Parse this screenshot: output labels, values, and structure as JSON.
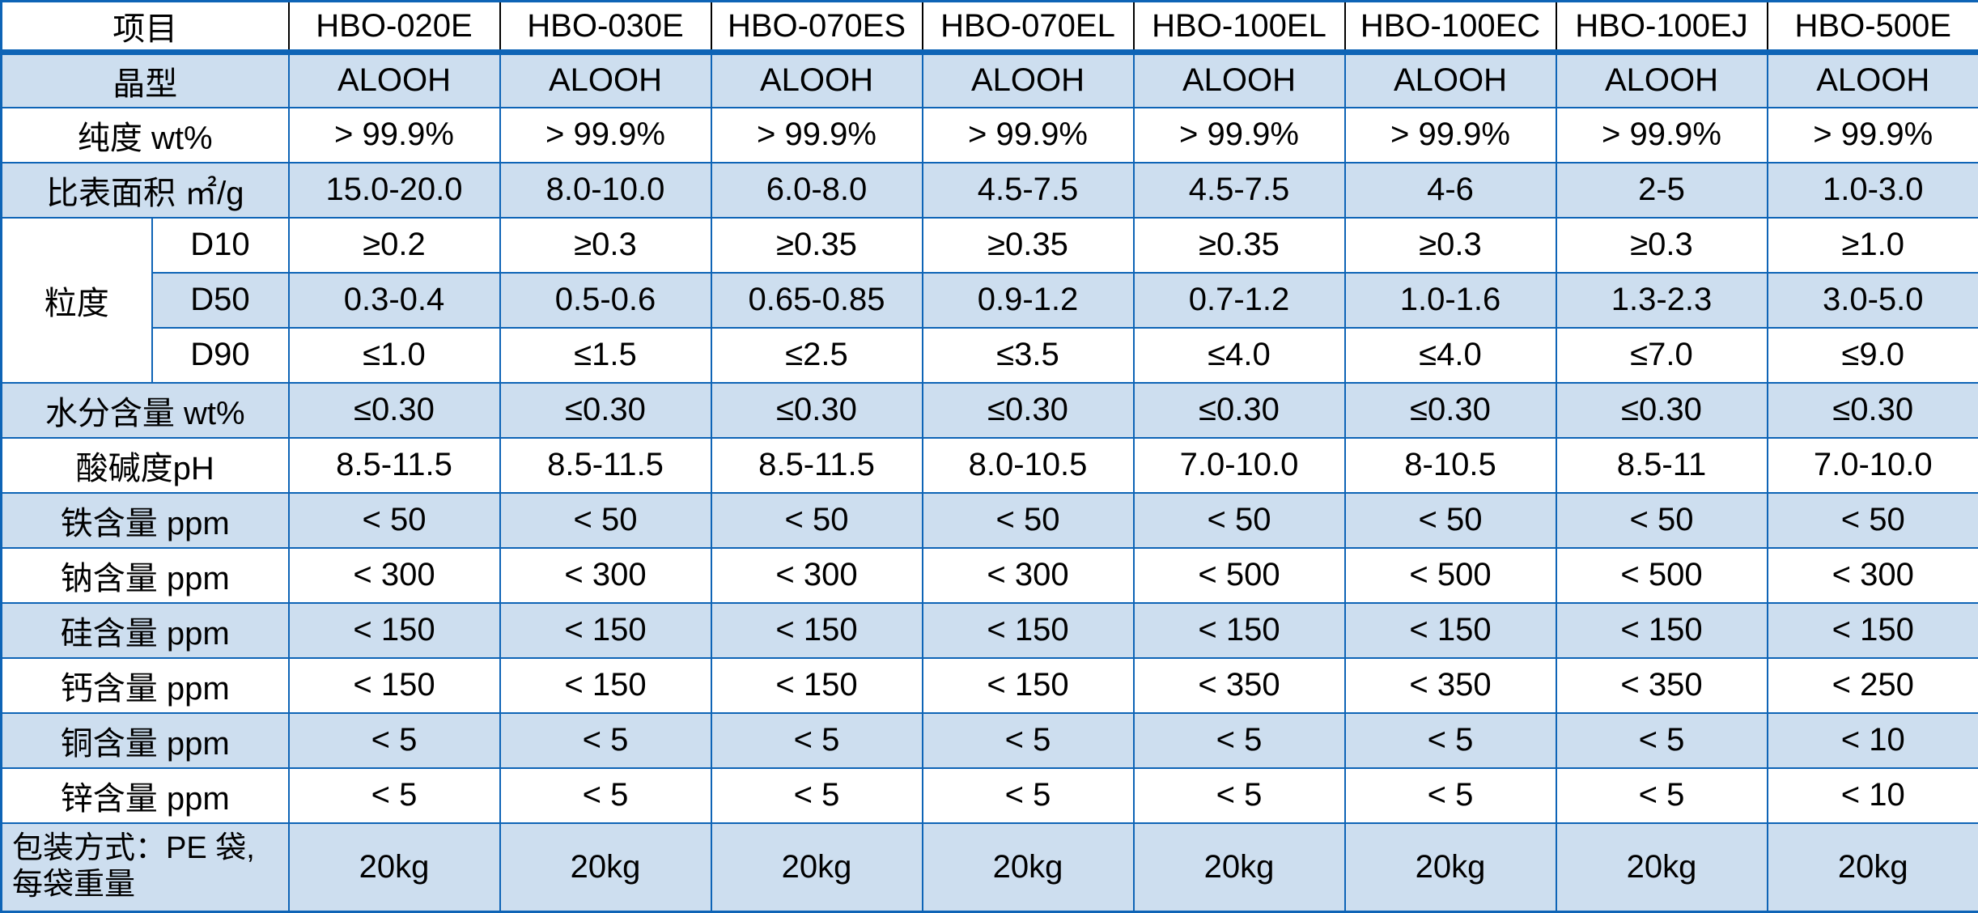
{
  "colors": {
    "grid_blue": "#0e64b6",
    "band_blue": "#cddeef",
    "header_divider_black": "#000000",
    "text": "#000000",
    "background": "#ffffff"
  },
  "table": {
    "header": {
      "item_label": "项目",
      "products": [
        "HBO-020E",
        "HBO-030E",
        "HBO-070ES",
        "HBO-070EL",
        "HBO-100EL",
        "HBO-100EC",
        "HBO-100EJ",
        "HBO-500E"
      ]
    },
    "sections": [
      {
        "kind": "simple",
        "label": "晶型",
        "values": [
          "ALOOH",
          "ALOOH",
          "ALOOH",
          "ALOOH",
          "ALOOH",
          "ALOOH",
          "ALOOH",
          "ALOOH"
        ]
      },
      {
        "kind": "simple",
        "label": "纯度 wt%",
        "values": [
          "> 99.9%",
          "> 99.9%",
          "> 99.9%",
          "> 99.9%",
          "> 99.9%",
          "> 99.9%",
          "> 99.9%",
          "> 99.9%"
        ]
      },
      {
        "kind": "simple",
        "label": "比表面积 ㎡/g",
        "values": [
          "15.0-20.0",
          "8.0-10.0",
          "6.0-8.0",
          "4.5-7.5",
          "4.5-7.5",
          "4-6",
          "2-5",
          "1.0-3.0"
        ]
      },
      {
        "kind": "group",
        "label": "粒度",
        "rows": [
          {
            "label": "D10",
            "values": [
              "≥0.2",
              "≥0.3",
              "≥0.35",
              "≥0.35",
              "≥0.35",
              "≥0.3",
              "≥0.3",
              "≥1.0"
            ]
          },
          {
            "label": "D50",
            "values": [
              "0.3-0.4",
              "0.5-0.6",
              "0.65-0.85",
              "0.9-1.2",
              "0.7-1.2",
              "1.0-1.6",
              "1.3-2.3",
              "3.0-5.0"
            ]
          },
          {
            "label": "D90",
            "values": [
              "≤1.0",
              "≤1.5",
              "≤2.5",
              "≤3.5",
              "≤4.0",
              "≤4.0",
              "≤7.0",
              "≤9.0"
            ]
          }
        ]
      },
      {
        "kind": "simple",
        "label": "水分含量 wt%",
        "values": [
          "≤0.30",
          "≤0.30",
          "≤0.30",
          "≤0.30",
          "≤0.30",
          "≤0.30",
          "≤0.30",
          "≤0.30"
        ]
      },
      {
        "kind": "simple",
        "label": "酸碱度pH",
        "values": [
          "8.5-11.5",
          "8.5-11.5",
          "8.5-11.5",
          "8.0-10.5",
          "7.0-10.0",
          "8-10.5",
          "8.5-11",
          "7.0-10.0"
        ]
      },
      {
        "kind": "simple",
        "label": "铁含量 ppm",
        "values": [
          "< 50",
          "< 50",
          "< 50",
          "< 50",
          "< 50",
          "< 50",
          "< 50",
          "< 50"
        ]
      },
      {
        "kind": "simple",
        "label": "钠含量 ppm",
        "values": [
          "< 300",
          "< 300",
          "< 300",
          "< 300",
          "< 500",
          "< 500",
          "< 500",
          "< 300"
        ]
      },
      {
        "kind": "simple",
        "label": "硅含量 ppm",
        "values": [
          "< 150",
          "< 150",
          "< 150",
          "< 150",
          "< 150",
          "< 150",
          "< 150",
          "< 150"
        ]
      },
      {
        "kind": "simple",
        "label": "钙含量 ppm",
        "values": [
          "< 150",
          "< 150",
          "< 150",
          "< 150",
          "< 350",
          "< 350",
          "< 350",
          "< 250"
        ]
      },
      {
        "kind": "simple",
        "label": "铜含量 ppm",
        "values": [
          "< 5",
          "< 5",
          "< 5",
          "< 5",
          "< 5",
          "< 5",
          "< 5",
          "< 10"
        ]
      },
      {
        "kind": "simple",
        "label": "锌含量 ppm",
        "values": [
          "< 5",
          "< 5",
          "< 5",
          "< 5",
          "< 5",
          "< 5",
          "< 5",
          "< 10"
        ]
      },
      {
        "kind": "packaging",
        "label_lines": [
          "包装方式：PE 袋,",
          "每袋重量"
        ],
        "values": [
          "20kg",
          "20kg",
          "20kg",
          "20kg",
          "20kg",
          "20kg",
          "20kg",
          "20kg"
        ]
      }
    ]
  }
}
